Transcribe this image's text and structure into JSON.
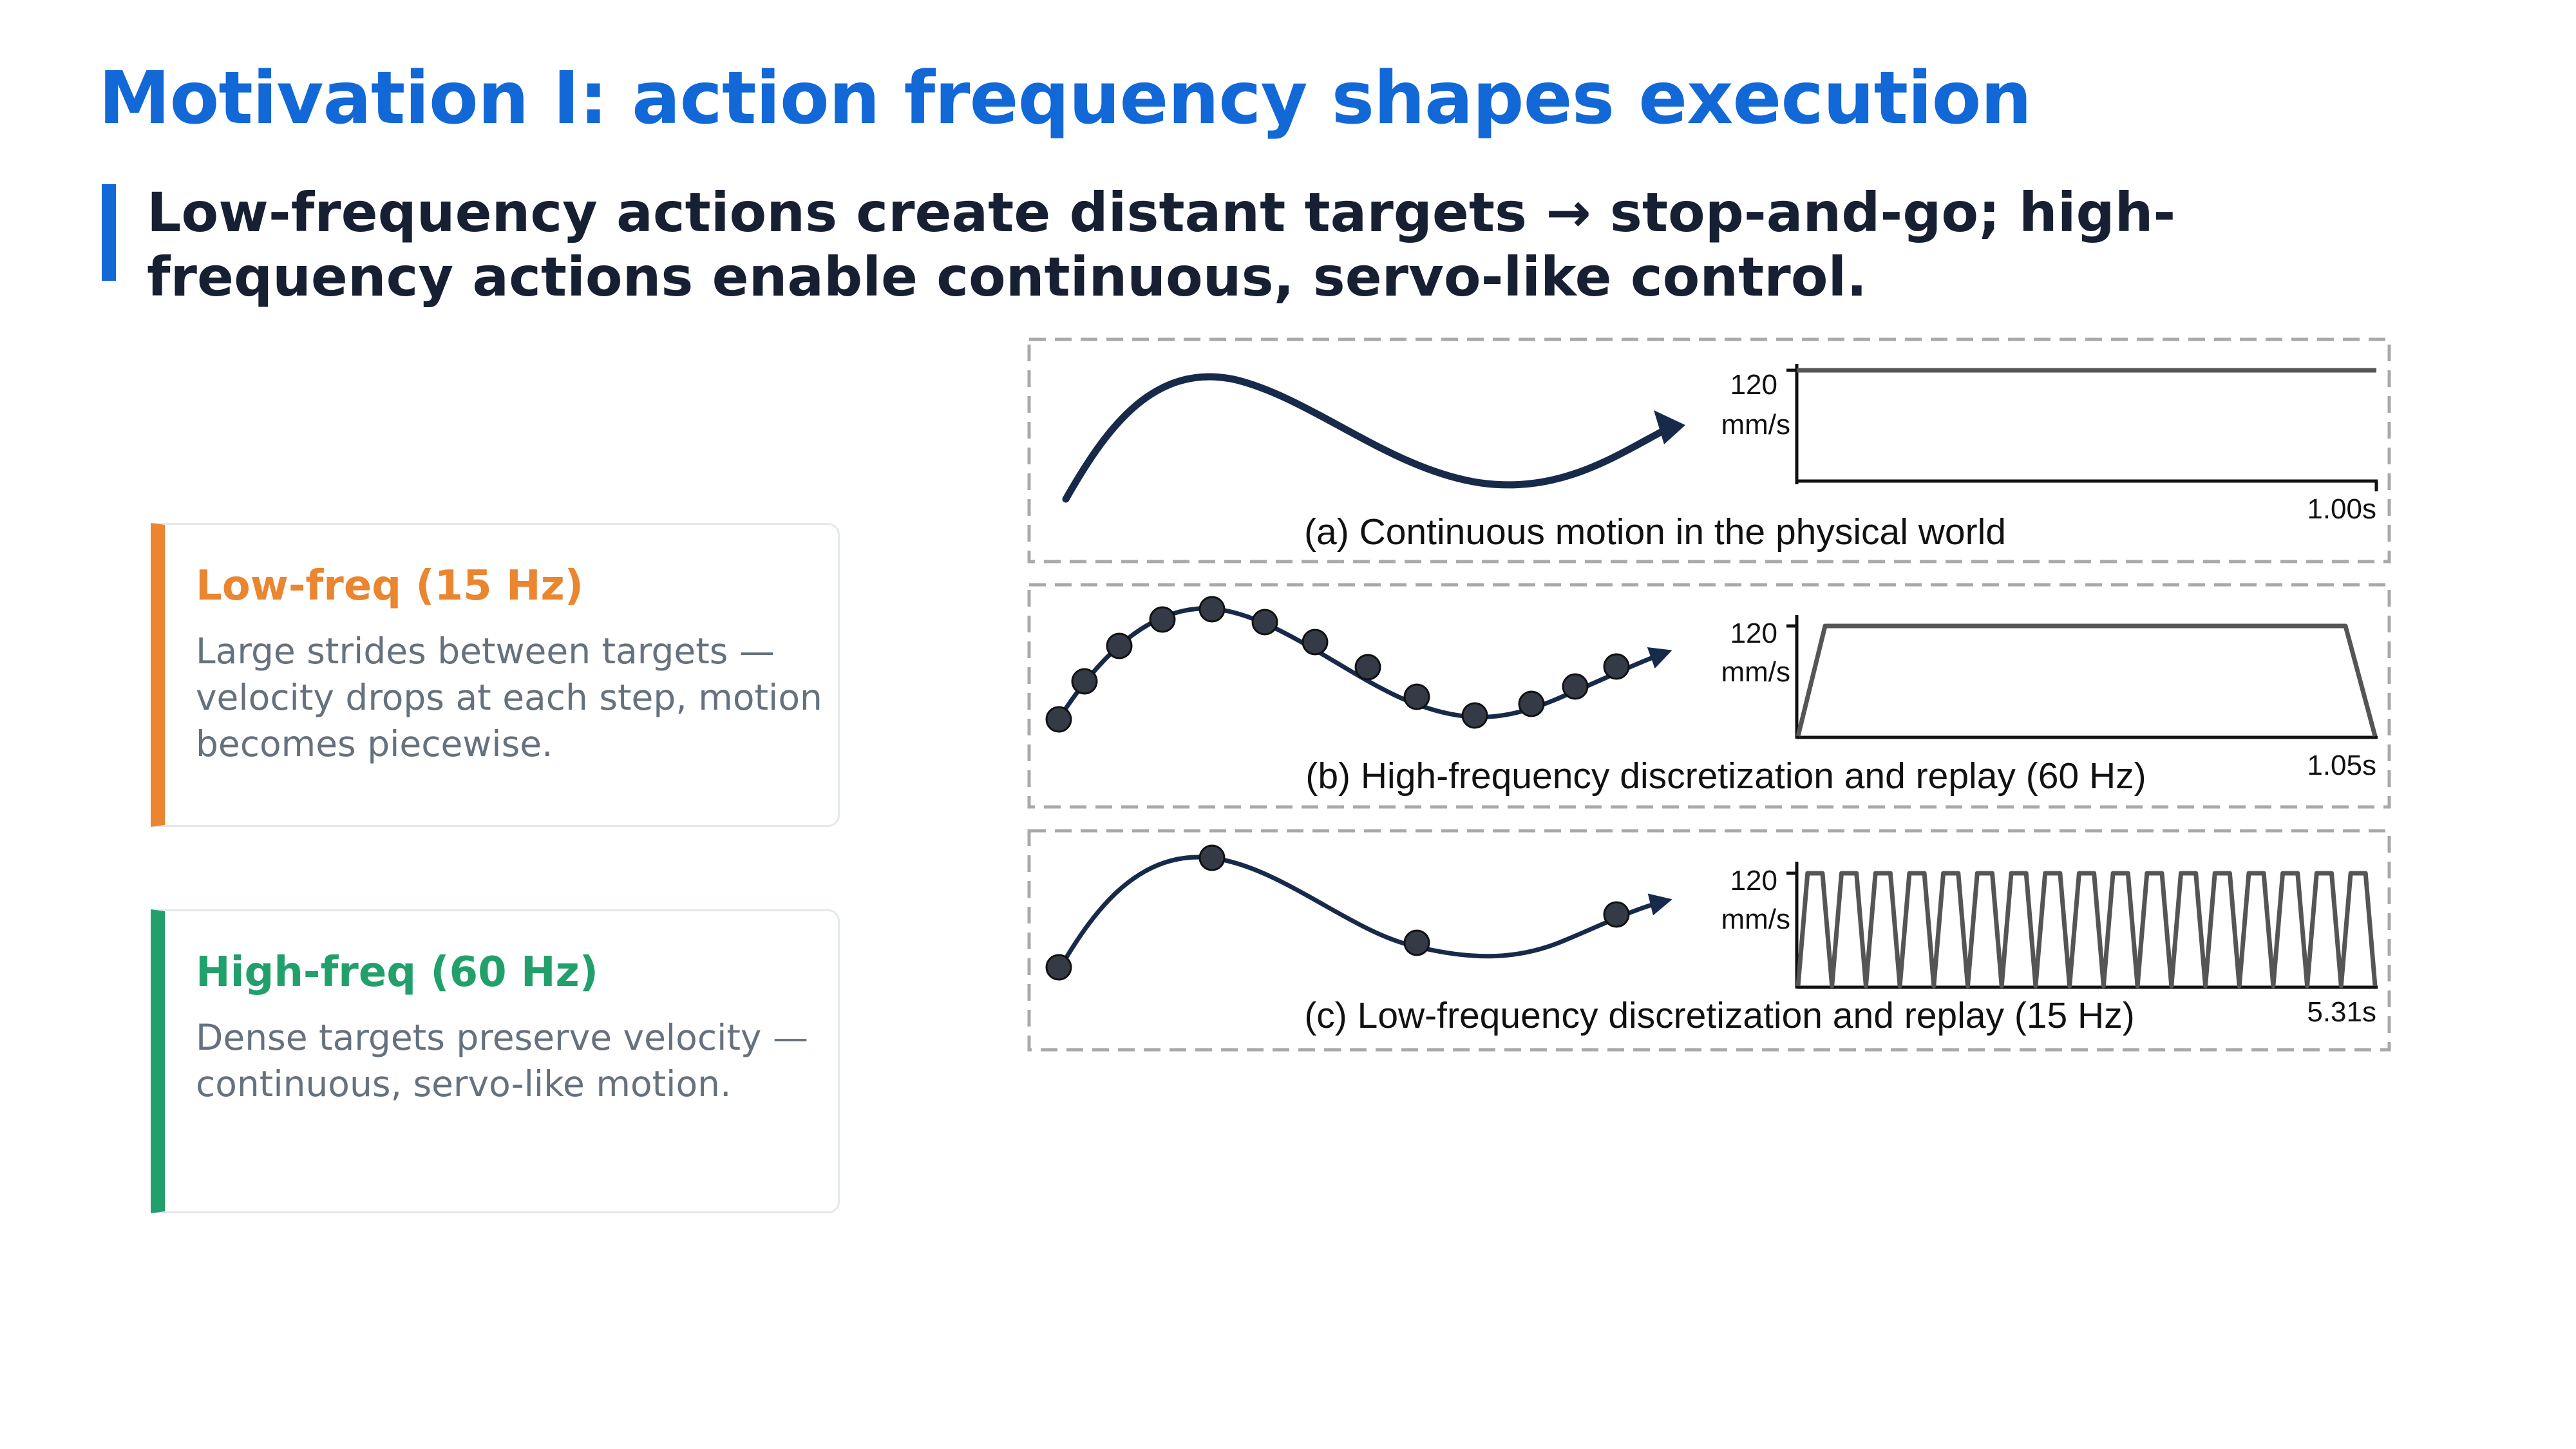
{
  "slide": {
    "title": "Motivation I: action frequency shapes execution",
    "subtitle": "Low-frequency actions create distant targets → stop-and-go; high-frequency actions enable continuous, servo-like control."
  },
  "cards": {
    "low": {
      "title": "Low-freq (15 Hz)",
      "body": "Large strides between targets — velocity drops at each step, motion becomes piecewise.",
      "color": "#ea8530"
    },
    "high": {
      "title": "High-freq (60 Hz)",
      "body": "Dense targets preserve velocity — continuous, servo-like motion.",
      "color": "#22a06b"
    }
  },
  "figure": {
    "curve_color": "#172a4a",
    "velocity_color": "#555555",
    "panels": [
      {
        "id": "a",
        "caption": "(a) Continuous motion in the physical world",
        "y_label_value": "120",
        "y_label_unit": "mm/s",
        "duration": "1.00s"
      },
      {
        "id": "b",
        "caption": "(b) High-frequency discretization and replay (60 Hz)",
        "y_label_value": "120",
        "y_label_unit": "mm/s",
        "duration": "1.05s"
      },
      {
        "id": "c",
        "caption": "(c) Low-frequency discretization and replay (15 Hz)",
        "y_label_value": "120",
        "y_label_unit": "mm/s",
        "duration": "5.31s"
      }
    ]
  }
}
